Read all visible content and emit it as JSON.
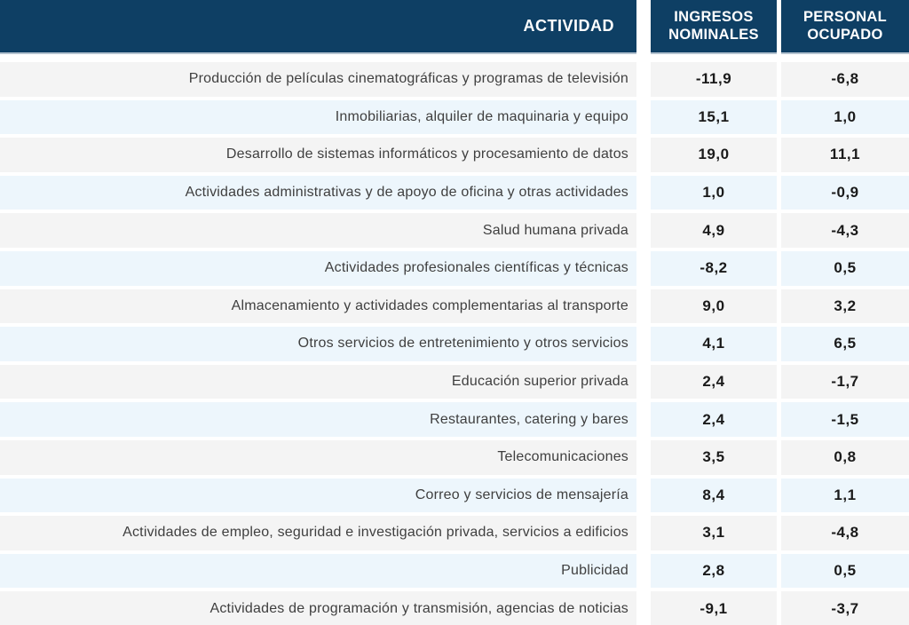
{
  "colors": {
    "header_bg": "#0e3f64",
    "header_text": "#ffffff",
    "header_underline": "#b3c2cf",
    "row_gray": "#f4f4f4",
    "row_blue": "#edf6fc",
    "activity_text": "#3f3f3f",
    "value_text": "#1a1a1a"
  },
  "chart_data": {
    "type": "table",
    "columns": [
      "ACTIVIDAD",
      "INGRESOS NOMINALES",
      "PERSONAL OCUPADO"
    ],
    "value_format": "decimal comma, one decimal place, percent variation",
    "rows": [
      {
        "actividad": "Producción de películas cinematográficas y programas de televisión",
        "ingresos_nominales": "-11,9",
        "personal_ocupado": "-6,8"
      },
      {
        "actividad": "Inmobiliarias, alquiler de maquinaria y equipo",
        "ingresos_nominales": "15,1",
        "personal_ocupado": "1,0"
      },
      {
        "actividad": "Desarrollo de sistemas informáticos y procesamiento de datos",
        "ingresos_nominales": "19,0",
        "personal_ocupado": "11,1"
      },
      {
        "actividad": "Actividades administrativas y de apoyo de oficina y otras actividades",
        "ingresos_nominales": "1,0",
        "personal_ocupado": "-0,9"
      },
      {
        "actividad": "Salud humana privada",
        "ingresos_nominales": "4,9",
        "personal_ocupado": "-4,3"
      },
      {
        "actividad": "Actividades profesionales científicas y técnicas",
        "ingresos_nominales": "-8,2",
        "personal_ocupado": "0,5"
      },
      {
        "actividad": "Almacenamiento y actividades complementarias al transporte",
        "ingresos_nominales": "9,0",
        "personal_ocupado": "3,2"
      },
      {
        "actividad": "Otros servicios de entretenimiento y otros servicios",
        "ingresos_nominales": "4,1",
        "personal_ocupado": "6,5"
      },
      {
        "actividad": "Educación superior privada",
        "ingresos_nominales": "2,4",
        "personal_ocupado": "-1,7"
      },
      {
        "actividad": "Restaurantes, catering y bares",
        "ingresos_nominales": "2,4",
        "personal_ocupado": "-1,5"
      },
      {
        "actividad": "Telecomunicaciones",
        "ingresos_nominales": "3,5",
        "personal_ocupado": "0,8"
      },
      {
        "actividad": "Correo y servicios de mensajería",
        "ingresos_nominales": "8,4",
        "personal_ocupado": "1,1"
      },
      {
        "actividad": "Actividades de empleo, seguridad e investigación privada, servicios a edificios",
        "ingresos_nominales": "3,1",
        "personal_ocupado": "-4,8"
      },
      {
        "actividad": "Publicidad",
        "ingresos_nominales": "2,8",
        "personal_ocupado": "0,5"
      },
      {
        "actividad": "Actividades de programación y transmisión,  agencias de noticias",
        "ingresos_nominales": "-9,1",
        "personal_ocupado": "-3,7"
      }
    ]
  }
}
